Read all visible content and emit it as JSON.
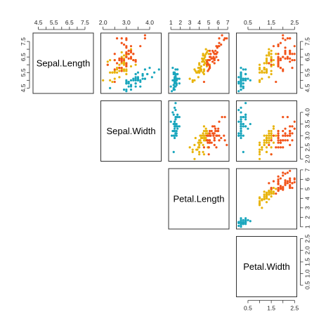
{
  "chart_data": {
    "type": "scatter",
    "matrix_layout": "upper-triangle",
    "variables": [
      "Sepal.Length",
      "Sepal.Width",
      "Petal.Length",
      "Petal.Width"
    ],
    "ranges": [
      [
        4.3,
        7.9
      ],
      [
        2.0,
        4.4
      ],
      [
        1.0,
        6.9
      ],
      [
        0.1,
        2.5
      ]
    ],
    "ticks": [
      [
        4.5,
        5.0,
        5.5,
        6.0,
        6.5,
        7.0,
        7.5
      ],
      [
        2.0,
        2.5,
        3.0,
        3.5,
        4.0
      ],
      [
        1,
        2,
        3,
        4,
        5,
        6,
        7
      ],
      [
        0.5,
        1.0,
        1.5,
        2.0,
        2.5
      ]
    ],
    "tick_labels": [
      [
        "4.5",
        "5.5",
        "6.5",
        "7.5"
      ],
      [
        "2.0",
        "3.0",
        "4.0"
      ],
      [
        "1",
        "2",
        "3",
        "4",
        "5",
        "6",
        "7"
      ],
      [
        "0.5",
        "1.5",
        "2.5"
      ]
    ],
    "tick_label_values": [
      [
        4.5,
        5.5,
        6.5,
        7.5
      ],
      [
        2.0,
        3.0,
        4.0
      ],
      [
        1,
        2,
        3,
        4,
        5,
        6,
        7
      ],
      [
        0.5,
        1.5,
        2.5
      ]
    ],
    "right_tick_labels": [
      [
        "4.5",
        "5.5",
        "6.5",
        "7.5"
      ],
      [
        "2.0",
        "2.5",
        "3.0",
        "3.5",
        "4.0"
      ],
      [
        "1",
        "2",
        "3",
        "4",
        "5",
        "6",
        "7"
      ],
      [
        "0.5",
        "1.0",
        "1.5",
        "2.0",
        "2.5"
      ]
    ],
    "right_tick_label_values": [
      [
        4.5,
        5.5,
        6.5,
        7.5
      ],
      [
        2.0,
        2.5,
        3.0,
        3.5,
        4.0
      ],
      [
        1,
        2,
        3,
        4,
        5,
        6,
        7
      ],
      [
        0.5,
        1.0,
        1.5,
        2.0,
        2.5
      ]
    ],
    "groups": [
      {
        "color": "#1aa6bd"
      },
      {
        "color": "#e8b40c"
      },
      {
        "color": "#f2541b"
      }
    ],
    "points": [
      [
        5.1,
        3.5,
        1.4,
        0.2,
        0
      ],
      [
        4.9,
        3.0,
        1.4,
        0.2,
        0
      ],
      [
        4.7,
        3.2,
        1.3,
        0.2,
        0
      ],
      [
        4.6,
        3.1,
        1.5,
        0.2,
        0
      ],
      [
        5.0,
        3.6,
        1.4,
        0.2,
        0
      ],
      [
        5.4,
        3.9,
        1.7,
        0.4,
        0
      ],
      [
        4.6,
        3.4,
        1.4,
        0.3,
        0
      ],
      [
        5.0,
        3.4,
        1.5,
        0.2,
        0
      ],
      [
        4.4,
        2.9,
        1.4,
        0.2,
        0
      ],
      [
        4.9,
        3.1,
        1.5,
        0.1,
        0
      ],
      [
        5.4,
        3.7,
        1.5,
        0.2,
        0
      ],
      [
        4.8,
        3.4,
        1.6,
        0.2,
        0
      ],
      [
        4.8,
        3.0,
        1.4,
        0.1,
        0
      ],
      [
        4.3,
        3.0,
        1.1,
        0.1,
        0
      ],
      [
        5.8,
        4.0,
        1.2,
        0.2,
        0
      ],
      [
        5.7,
        4.4,
        1.5,
        0.4,
        0
      ],
      [
        5.4,
        3.9,
        1.3,
        0.4,
        0
      ],
      [
        5.1,
        3.5,
        1.4,
        0.3,
        0
      ],
      [
        5.7,
        3.8,
        1.7,
        0.3,
        0
      ],
      [
        5.1,
        3.8,
        1.5,
        0.3,
        0
      ],
      [
        5.4,
        3.4,
        1.7,
        0.2,
        0
      ],
      [
        5.1,
        3.7,
        1.5,
        0.4,
        0
      ],
      [
        4.6,
        3.6,
        1.0,
        0.2,
        0
      ],
      [
        5.1,
        3.3,
        1.7,
        0.5,
        0
      ],
      [
        4.8,
        3.4,
        1.9,
        0.2,
        0
      ],
      [
        5.0,
        3.0,
        1.6,
        0.2,
        0
      ],
      [
        5.0,
        3.4,
        1.6,
        0.4,
        0
      ],
      [
        5.2,
        3.5,
        1.5,
        0.2,
        0
      ],
      [
        5.2,
        3.4,
        1.4,
        0.2,
        0
      ],
      [
        4.7,
        3.2,
        1.6,
        0.2,
        0
      ],
      [
        4.8,
        3.1,
        1.6,
        0.2,
        0
      ],
      [
        5.4,
        3.4,
        1.5,
        0.4,
        0
      ],
      [
        5.2,
        4.1,
        1.5,
        0.1,
        0
      ],
      [
        5.5,
        4.2,
        1.4,
        0.2,
        0
      ],
      [
        4.9,
        3.1,
        1.5,
        0.2,
        0
      ],
      [
        5.0,
        3.2,
        1.2,
        0.2,
        0
      ],
      [
        5.5,
        3.5,
        1.3,
        0.2,
        0
      ],
      [
        4.9,
        3.6,
        1.4,
        0.1,
        0
      ],
      [
        4.4,
        3.0,
        1.3,
        0.2,
        0
      ],
      [
        5.1,
        3.4,
        1.5,
        0.2,
        0
      ],
      [
        5.0,
        3.5,
        1.3,
        0.3,
        0
      ],
      [
        4.5,
        2.3,
        1.3,
        0.3,
        0
      ],
      [
        4.4,
        3.2,
        1.3,
        0.2,
        0
      ],
      [
        5.0,
        3.5,
        1.6,
        0.6,
        0
      ],
      [
        5.1,
        3.8,
        1.9,
        0.4,
        0
      ],
      [
        4.8,
        3.0,
        1.4,
        0.3,
        0
      ],
      [
        5.1,
        3.8,
        1.6,
        0.2,
        0
      ],
      [
        4.6,
        3.2,
        1.4,
        0.2,
        0
      ],
      [
        5.3,
        3.7,
        1.5,
        0.2,
        0
      ],
      [
        5.0,
        3.3,
        1.4,
        0.2,
        0
      ],
      [
        7.0,
        3.2,
        4.7,
        1.4,
        1
      ],
      [
        6.4,
        3.2,
        4.5,
        1.5,
        1
      ],
      [
        6.9,
        3.1,
        4.9,
        1.5,
        1
      ],
      [
        5.5,
        2.3,
        4.0,
        1.3,
        1
      ],
      [
        6.5,
        2.8,
        4.6,
        1.5,
        1
      ],
      [
        5.7,
        2.8,
        4.5,
        1.3,
        1
      ],
      [
        6.3,
        3.3,
        4.7,
        1.6,
        1
      ],
      [
        4.9,
        2.4,
        3.3,
        1.0,
        1
      ],
      [
        6.6,
        2.9,
        4.6,
        1.3,
        1
      ],
      [
        5.2,
        2.7,
        3.9,
        1.4,
        1
      ],
      [
        5.0,
        2.0,
        3.5,
        1.0,
        1
      ],
      [
        5.9,
        3.0,
        4.2,
        1.5,
        1
      ],
      [
        6.0,
        2.2,
        4.0,
        1.0,
        1
      ],
      [
        6.1,
        2.9,
        4.7,
        1.4,
        1
      ],
      [
        5.6,
        2.9,
        3.6,
        1.3,
        1
      ],
      [
        6.7,
        3.1,
        4.4,
        1.4,
        1
      ],
      [
        5.6,
        3.0,
        4.5,
        1.5,
        1
      ],
      [
        5.8,
        2.7,
        4.1,
        1.0,
        1
      ],
      [
        6.2,
        2.2,
        4.5,
        1.5,
        1
      ],
      [
        5.6,
        2.5,
        3.9,
        1.1,
        1
      ],
      [
        5.9,
        3.2,
        4.8,
        1.8,
        1
      ],
      [
        6.1,
        2.8,
        4.0,
        1.3,
        1
      ],
      [
        6.3,
        2.5,
        4.9,
        1.5,
        1
      ],
      [
        6.1,
        2.8,
        4.7,
        1.2,
        1
      ],
      [
        6.4,
        2.9,
        4.3,
        1.3,
        1
      ],
      [
        6.6,
        3.0,
        4.4,
        1.4,
        1
      ],
      [
        6.8,
        2.8,
        4.8,
        1.4,
        1
      ],
      [
        6.7,
        3.0,
        5.0,
        1.7,
        1
      ],
      [
        6.0,
        2.9,
        4.5,
        1.5,
        1
      ],
      [
        5.7,
        2.6,
        3.5,
        1.0,
        1
      ],
      [
        5.5,
        2.4,
        3.8,
        1.1,
        1
      ],
      [
        5.5,
        2.4,
        3.7,
        1.0,
        1
      ],
      [
        5.8,
        2.7,
        3.9,
        1.2,
        1
      ],
      [
        6.0,
        2.7,
        5.1,
        1.6,
        1
      ],
      [
        5.4,
        3.0,
        4.5,
        1.5,
        1
      ],
      [
        6.0,
        3.4,
        4.5,
        1.6,
        1
      ],
      [
        6.7,
        3.1,
        4.7,
        1.5,
        1
      ],
      [
        6.3,
        2.3,
        4.4,
        1.3,
        1
      ],
      [
        5.6,
        3.0,
        4.1,
        1.3,
        1
      ],
      [
        5.5,
        2.5,
        4.0,
        1.3,
        1
      ],
      [
        5.5,
        2.6,
        4.4,
        1.2,
        1
      ],
      [
        6.1,
        3.0,
        4.6,
        1.4,
        1
      ],
      [
        5.8,
        2.6,
        4.0,
        1.2,
        1
      ],
      [
        5.0,
        2.3,
        3.3,
        1.0,
        1
      ],
      [
        5.6,
        2.7,
        4.2,
        1.3,
        1
      ],
      [
        5.7,
        3.0,
        4.2,
        1.2,
        1
      ],
      [
        5.7,
        2.9,
        4.2,
        1.3,
        1
      ],
      [
        6.2,
        2.9,
        4.3,
        1.3,
        1
      ],
      [
        5.1,
        2.5,
        3.0,
        1.1,
        1
      ],
      [
        5.7,
        2.8,
        4.1,
        1.3,
        1
      ],
      [
        6.3,
        3.3,
        6.0,
        2.5,
        2
      ],
      [
        5.8,
        2.7,
        5.1,
        1.9,
        2
      ],
      [
        7.1,
        3.0,
        5.9,
        2.1,
        2
      ],
      [
        6.3,
        2.9,
        5.6,
        1.8,
        2
      ],
      [
        6.5,
        3.0,
        5.8,
        2.2,
        2
      ],
      [
        7.6,
        3.0,
        6.6,
        2.1,
        2
      ],
      [
        4.9,
        2.5,
        4.5,
        1.7,
        2
      ],
      [
        7.3,
        2.9,
        6.3,
        1.8,
        2
      ],
      [
        6.7,
        2.5,
        5.8,
        1.8,
        2
      ],
      [
        7.2,
        3.6,
        6.1,
        2.5,
        2
      ],
      [
        6.5,
        3.2,
        5.1,
        2.0,
        2
      ],
      [
        6.4,
        2.7,
        5.3,
        1.9,
        2
      ],
      [
        6.8,
        3.0,
        5.5,
        2.1,
        2
      ],
      [
        5.7,
        2.5,
        5.0,
        2.0,
        2
      ],
      [
        5.8,
        2.8,
        5.1,
        2.4,
        2
      ],
      [
        6.4,
        3.2,
        5.3,
        2.3,
        2
      ],
      [
        6.5,
        3.0,
        5.5,
        1.8,
        2
      ],
      [
        7.7,
        3.8,
        6.7,
        2.2,
        2
      ],
      [
        7.7,
        2.6,
        6.9,
        2.3,
        2
      ],
      [
        6.0,
        2.2,
        5.0,
        1.5,
        2
      ],
      [
        6.9,
        3.2,
        5.7,
        2.3,
        2
      ],
      [
        5.6,
        2.8,
        4.9,
        2.0,
        2
      ],
      [
        7.7,
        2.8,
        6.7,
        2.0,
        2
      ],
      [
        6.3,
        2.7,
        4.9,
        1.8,
        2
      ],
      [
        6.7,
        3.3,
        5.7,
        2.1,
        2
      ],
      [
        7.2,
        3.2,
        6.0,
        1.8,
        2
      ],
      [
        6.2,
        2.8,
        4.8,
        1.8,
        2
      ],
      [
        6.1,
        3.0,
        4.9,
        1.8,
        2
      ],
      [
        6.4,
        2.8,
        5.6,
        2.1,
        2
      ],
      [
        7.2,
        3.0,
        5.8,
        1.6,
        2
      ],
      [
        7.4,
        2.8,
        6.1,
        1.9,
        2
      ],
      [
        7.9,
        3.8,
        6.4,
        2.0,
        2
      ],
      [
        6.4,
        2.8,
        5.6,
        2.2,
        2
      ],
      [
        6.3,
        2.8,
        5.1,
        1.5,
        2
      ],
      [
        6.1,
        2.6,
        5.6,
        1.4,
        2
      ],
      [
        7.7,
        3.0,
        6.1,
        2.3,
        2
      ],
      [
        6.3,
        3.4,
        5.6,
        2.4,
        2
      ],
      [
        6.4,
        3.1,
        5.5,
        1.8,
        2
      ],
      [
        6.0,
        3.0,
        4.8,
        1.8,
        2
      ],
      [
        6.9,
        3.1,
        5.4,
        2.1,
        2
      ],
      [
        6.7,
        3.1,
        5.6,
        2.4,
        2
      ],
      [
        6.9,
        3.1,
        5.1,
        2.3,
        2
      ],
      [
        5.8,
        2.7,
        5.1,
        1.9,
        2
      ],
      [
        6.8,
        3.2,
        5.9,
        2.3,
        2
      ],
      [
        6.7,
        3.3,
        5.7,
        2.5,
        2
      ],
      [
        6.7,
        3.0,
        5.2,
        2.3,
        2
      ],
      [
        6.3,
        2.5,
        5.0,
        1.9,
        2
      ],
      [
        6.5,
        3.0,
        5.2,
        2.0,
        2
      ],
      [
        6.2,
        3.4,
        5.4,
        2.3,
        2
      ],
      [
        5.9,
        3.0,
        5.1,
        1.8,
        2
      ]
    ]
  }
}
